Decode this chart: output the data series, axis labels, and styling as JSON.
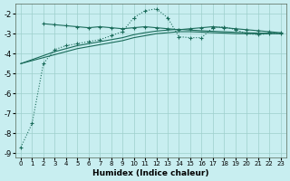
{
  "xlabel": "Humidex (Indice chaleur)",
  "xlim": [
    -0.5,
    23.5
  ],
  "ylim": [
    -9.2,
    -1.5
  ],
  "yticks": [
    -9,
    -8,
    -7,
    -6,
    -5,
    -4,
    -3,
    -2
  ],
  "xticks": [
    0,
    1,
    2,
    3,
    4,
    5,
    6,
    7,
    8,
    9,
    10,
    11,
    12,
    13,
    14,
    15,
    16,
    17,
    18,
    19,
    20,
    21,
    22,
    23
  ],
  "bg_color": "#c8eef0",
  "grid_color": "#9ecfcc",
  "line_color": "#1a6b5a",
  "line1_x": [
    2,
    3,
    4,
    5,
    6,
    7,
    8,
    9,
    10,
    11,
    12,
    13,
    14,
    15,
    16,
    17,
    18,
    19,
    20,
    21,
    22,
    23
  ],
  "line1_y": [
    -2.5,
    -2.55,
    -2.6,
    -2.65,
    -2.7,
    -2.65,
    -2.7,
    -2.75,
    -2.7,
    -2.65,
    -2.7,
    -2.75,
    -2.8,
    -2.75,
    -2.7,
    -2.65,
    -2.7,
    -2.75,
    -2.8,
    -2.85,
    -2.9,
    -2.95
  ],
  "line2_x": [
    0,
    1,
    2,
    3,
    4,
    5,
    6,
    7,
    8,
    9,
    10,
    11,
    12,
    13,
    14,
    15,
    16,
    17,
    18,
    19,
    20,
    21,
    22,
    23
  ],
  "line2_y": [
    -8.7,
    -7.5,
    -4.5,
    -3.8,
    -3.6,
    -3.5,
    -3.4,
    -3.3,
    -3.1,
    -2.9,
    -2.2,
    -1.85,
    -1.75,
    -2.2,
    -3.15,
    -3.2,
    -3.2,
    -2.7,
    -2.65,
    -2.8,
    -3.0,
    -3.05,
    -3.0,
    -3.0
  ],
  "line3_x": [
    0,
    1,
    2,
    3,
    4,
    5,
    6,
    7,
    8,
    9,
    10,
    11,
    12,
    13,
    14,
    15,
    16,
    17,
    18,
    19,
    20,
    21,
    22,
    23
  ],
  "line3_y": [
    -4.5,
    -4.35,
    -4.2,
    -4.05,
    -3.9,
    -3.75,
    -3.65,
    -3.55,
    -3.45,
    -3.35,
    -3.2,
    -3.1,
    -3.0,
    -2.95,
    -2.9,
    -2.9,
    -2.92,
    -2.95,
    -2.97,
    -3.0,
    -3.0,
    -3.0,
    -3.0,
    -3.0
  ],
  "line4_x": [
    0,
    1,
    2,
    3,
    4,
    5,
    6,
    7,
    8,
    9,
    10,
    11,
    12,
    13,
    14,
    15,
    16,
    17,
    18,
    19,
    20,
    21,
    22,
    23
  ],
  "line4_y": [
    -4.5,
    -4.3,
    -4.1,
    -3.9,
    -3.75,
    -3.6,
    -3.5,
    -3.4,
    -3.3,
    -3.2,
    -3.05,
    -2.95,
    -2.87,
    -2.82,
    -2.78,
    -2.82,
    -2.85,
    -2.88,
    -2.9,
    -2.93,
    -2.95,
    -2.97,
    -2.98,
    -3.0
  ]
}
